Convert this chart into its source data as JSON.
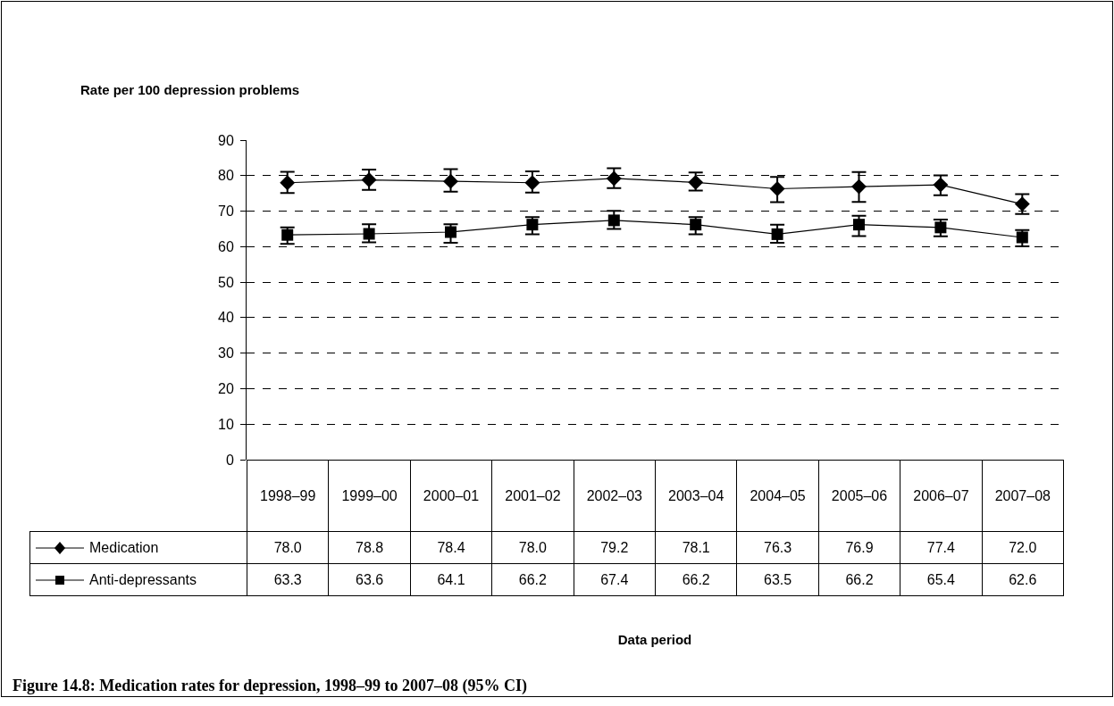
{
  "chart_data": {
    "type": "line",
    "title": "Figure 14.8: Medication rates for depression, 1998–99 to 2007–08 (95% CI)",
    "ylabel": "Rate per 100 depression problems",
    "annotations": [
      "Data period"
    ],
    "categories": [
      "1998–99",
      "1999–00",
      "2000–01",
      "2001–02",
      "2002–03",
      "2003–04",
      "2004–05",
      "2005–06",
      "2006–07",
      "2007–08"
    ],
    "series": [
      {
        "name": "Medication",
        "color": "#000000",
        "marker": "diamond",
        "values": [
          78.0,
          78.8,
          78.4,
          78.0,
          79.2,
          78.1,
          76.3,
          76.9,
          77.4,
          72.0
        ],
        "value_labels": [
          "78.0",
          "78.8",
          "78.4",
          "78.0",
          "79.2",
          "78.1",
          "76.3",
          "76.9",
          "77.4",
          "72.0"
        ],
        "errors": [
          [
            75.1,
            81.1
          ],
          [
            76.0,
            81.7
          ],
          [
            75.5,
            81.8
          ],
          [
            75.2,
            81.2
          ],
          [
            76.5,
            82.1
          ],
          [
            75.8,
            80.9
          ],
          [
            72.5,
            79.6
          ],
          [
            72.6,
            81.0
          ],
          [
            74.5,
            80.1
          ],
          [
            69.2,
            74.8
          ]
        ]
      },
      {
        "name": "Anti-depressants",
        "color": "#000000",
        "marker": "square",
        "values": [
          63.3,
          63.6,
          64.1,
          66.2,
          67.4,
          66.2,
          63.5,
          66.2,
          65.4,
          62.6
        ],
        "value_labels": [
          "63.3",
          "63.6",
          "64.1",
          "66.2",
          "67.4",
          "66.2",
          "63.5",
          "66.2",
          "65.4",
          "62.6"
        ],
        "errors": [
          [
            60.8,
            65.4
          ],
          [
            61.2,
            66.3
          ],
          [
            61.1,
            66.3
          ],
          [
            63.5,
            68.3
          ],
          [
            65.0,
            70.1
          ],
          [
            63.5,
            68.3
          ],
          [
            61.1,
            66.2
          ],
          [
            63.0,
            68.7
          ],
          [
            62.9,
            67.6
          ],
          [
            60.1,
            64.7
          ]
        ]
      }
    ],
    "ylim": [
      0,
      90
    ],
    "yticks": [
      0,
      10,
      20,
      30,
      40,
      50,
      60,
      70,
      80,
      90
    ],
    "grid": "y",
    "legend": "bottom",
    "tick_labels": "y",
    "line_style": "solid"
  }
}
